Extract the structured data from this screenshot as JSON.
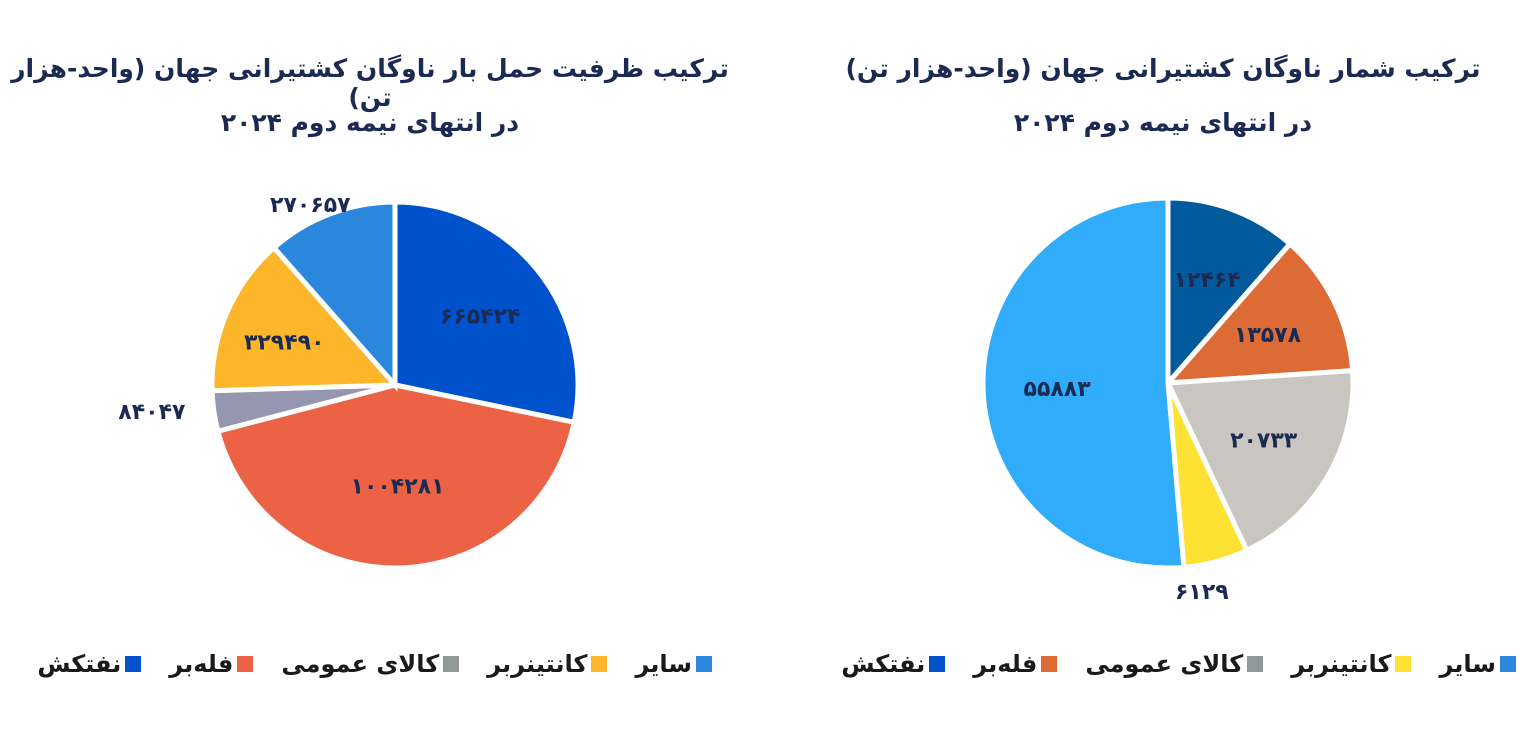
{
  "chart_data": [
    {
      "type": "pie",
      "title": "ترکیب ظرفیت حمل بار ناوگان کشتیرانی جهان (واحد-هزار تن)",
      "subtitle": "در انتهای نیمه دوم ۲۰۲۴",
      "categories": [
        "نفتکش",
        "فله‌بر",
        "کالای عمومی",
        "کانتینربر",
        "سایر"
      ],
      "values": [
        665424,
        1004281,
        84047,
        329490,
        270657
      ],
      "value_labels": [
        "۶۶۵۴۲۴",
        "۱۰۰۴۲۸۱",
        "۸۴۰۴۷",
        "۳۲۹۴۹۰",
        "۲۷۰۶۵۷"
      ],
      "colors": [
        "#0052cc",
        "#eb6244",
        "#9597b0",
        "#fdb52a",
        "#2a87dc"
      ],
      "legend_colors": [
        "#0052cc",
        "#eb6244",
        "#8f9a98",
        "#fdb52a",
        "#2a87dc"
      ],
      "legend_position": "bottom",
      "start_angle": 0,
      "direction": "clockwise"
    },
    {
      "type": "pie",
      "title": "ترکیب شمار ناوگان کشتیرانی جهان (واحد-هزار تن)",
      "subtitle": "در انتهای نیمه دوم ۲۰۲۴",
      "categories": [
        "نفتکش",
        "فله‌بر",
        "کالای عمومی",
        "کانتینربر",
        "سایر"
      ],
      "values": [
        12464,
        13578,
        20733,
        6129,
        55883
      ],
      "value_labels": [
        "۱۲۴۶۴",
        "۱۳۵۷۸",
        "۲۰۷۳۳",
        "۶۱۲۹",
        "۵۵۸۸۳"
      ],
      "colors": [
        "#005a9c",
        "#dc6b36",
        "#c9c5c0",
        "#fde234",
        "#30acfa"
      ],
      "legend_colors": [
        "#0052cc",
        "#dc6b36",
        "#8f9a98",
        "#fde234",
        "#2a87dc"
      ],
      "legend_position": "bottom",
      "start_angle": 0,
      "direction": "clockwise"
    }
  ],
  "left": {
    "title_line1": "ترکیب ظرفیت حمل بار ناوگان کشتیرانی جهان (واحد-هزار تن)",
    "title_line2": "در انتهای نیمه دوم ۲۰۲۴",
    "legend": [
      "سایر",
      "کانتینربر",
      "کالای عمومی",
      "فله‌بر",
      "نفتکش"
    ]
  },
  "right": {
    "title_line1": "ترکیب شمار ناوگان کشتیرانی جهان (واحد-هزار تن)",
    "title_line2": "در انتهای نیمه دوم ۲۰۲۴",
    "legend": [
      "سایر",
      "کانتینربر",
      "کالای عمومی",
      "فله‌بر",
      "نفتکش"
    ]
  }
}
